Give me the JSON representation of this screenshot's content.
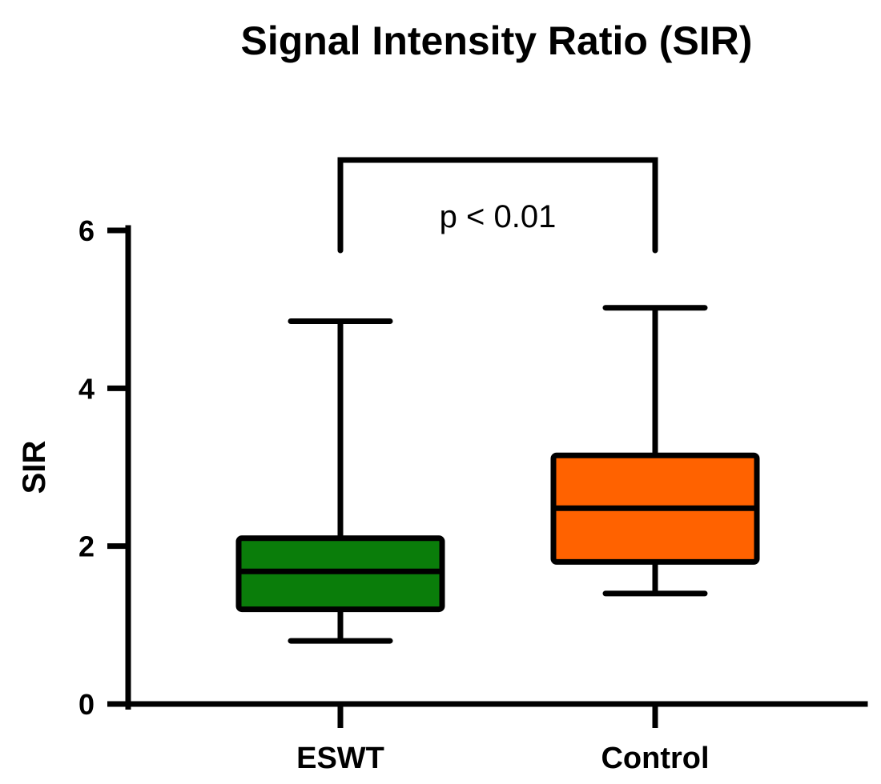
{
  "chart_data": {
    "type": "box",
    "title": "Signal Intensity Ratio (SIR)",
    "xlabel": "",
    "ylabel": "SIR",
    "ylim": [
      0,
      6
    ],
    "yticks": [
      0,
      2,
      4,
      6
    ],
    "grid": false,
    "categories": [
      "ESWT",
      "Control"
    ],
    "boxes": [
      {
        "category": "ESWT",
        "min": 0.8,
        "q1": 1.2,
        "median": 1.68,
        "q3": 2.1,
        "max": 4.85,
        "color": "#0a7d0a"
      },
      {
        "category": "Control",
        "min": 1.4,
        "q1": 1.8,
        "median": 2.48,
        "q3": 3.15,
        "max": 5.02,
        "color": "#ff6200"
      }
    ],
    "annotation": {
      "text": "p < 0.01",
      "between": [
        "ESWT",
        "Control"
      ]
    }
  }
}
